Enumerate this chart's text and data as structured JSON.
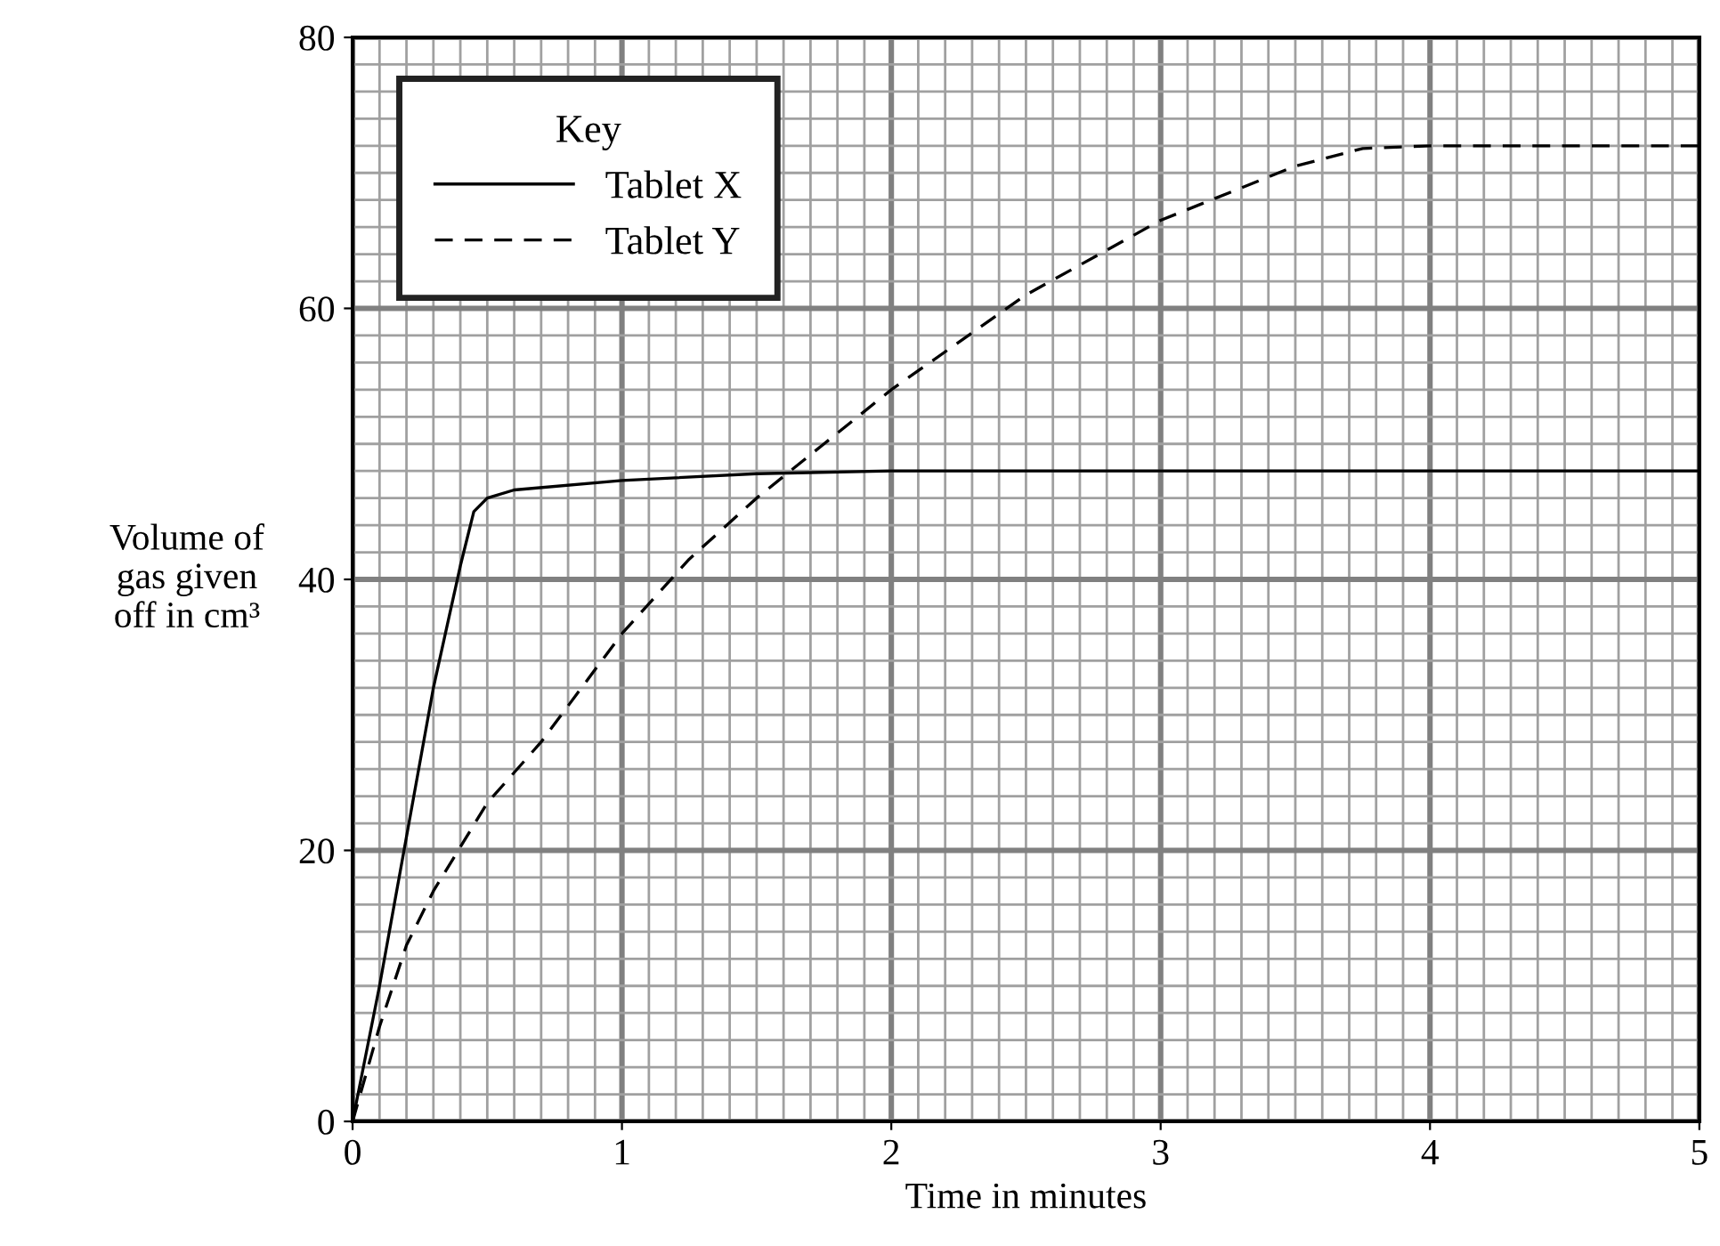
{
  "chart_data": {
    "type": "line",
    "xlabel": "Time in minutes",
    "ylabel": "Volume of\ngas given\noff in cm³",
    "legend_title": "Key",
    "xlim": [
      0,
      5
    ],
    "ylim": [
      0,
      80
    ],
    "xticks": [
      0,
      1,
      2,
      3,
      4,
      5
    ],
    "yticks": [
      0,
      20,
      40,
      60,
      80
    ],
    "grid": true,
    "legend": "top left",
    "series": [
      {
        "name": "Tablet X",
        "color": "#000000",
        "line_style": "solid",
        "x": [
          0,
          0.1,
          0.2,
          0.3,
          0.4,
          0.45,
          0.5,
          0.6,
          1,
          1.5,
          2,
          5
        ],
        "values": [
          0,
          10,
          21,
          32,
          41,
          45,
          46,
          46.6,
          47.3,
          47.8,
          48,
          48
        ]
      },
      {
        "name": "Tablet Y",
        "color": "#000000",
        "line_style": "dashed",
        "x": [
          0,
          0.1,
          0.2,
          0.3,
          0.5,
          0.7,
          1,
          1.25,
          1.5,
          1.75,
          2,
          2.5,
          3,
          3.5,
          3.75,
          4,
          5
        ],
        "values": [
          0,
          7,
          13,
          17,
          23.5,
          28,
          36,
          41.5,
          46,
          50,
          54,
          61,
          66.5,
          70.5,
          71.8,
          72,
          72
        ]
      }
    ]
  }
}
